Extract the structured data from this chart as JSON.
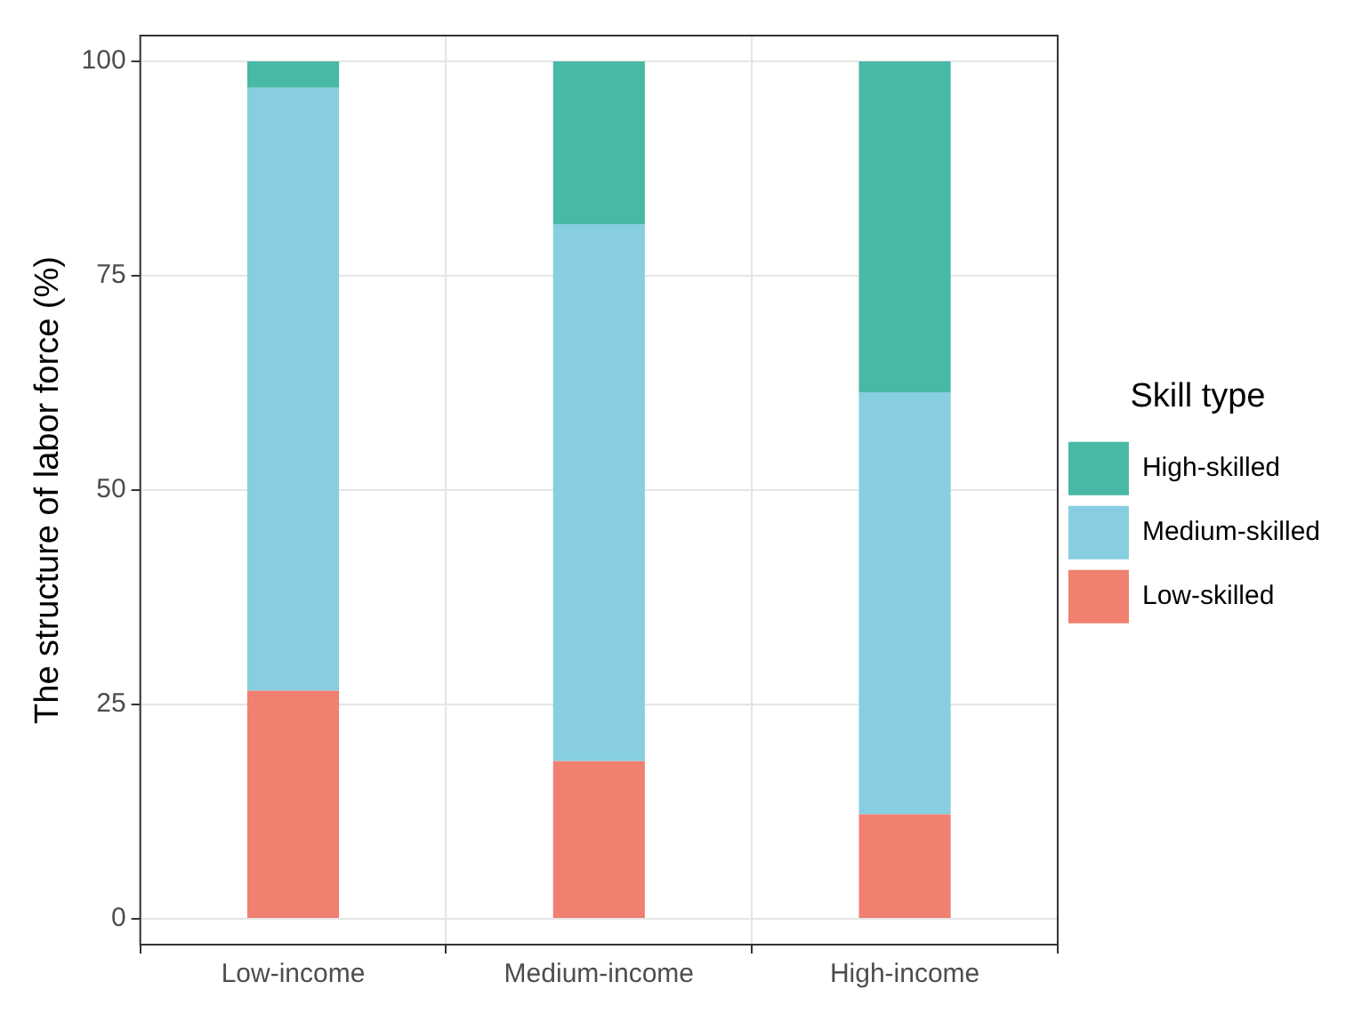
{
  "chart_data": {
    "type": "bar",
    "ylabel": "The structure of labor force (%)",
    "legend_title": "Skill type",
    "categories": [
      "Low-income",
      "Medium-income",
      "High-income"
    ],
    "stacked": true,
    "series": [
      {
        "name": "Low-skilled",
        "color": "#f08070",
        "values": [
          26.6,
          18.4,
          12.2
        ]
      },
      {
        "name": "Medium-skilled",
        "color": "#87cee0",
        "values": [
          70.3,
          62.6,
          49.2
        ]
      },
      {
        "name": "High-skilled",
        "color": "#48b9a5",
        "values": [
          3.1,
          19.0,
          38.6
        ]
      }
    ],
    "ylim": [
      -3,
      103
    ],
    "yticks": [
      0,
      25,
      50,
      75,
      100
    ],
    "grid": true,
    "legend": "right"
  }
}
